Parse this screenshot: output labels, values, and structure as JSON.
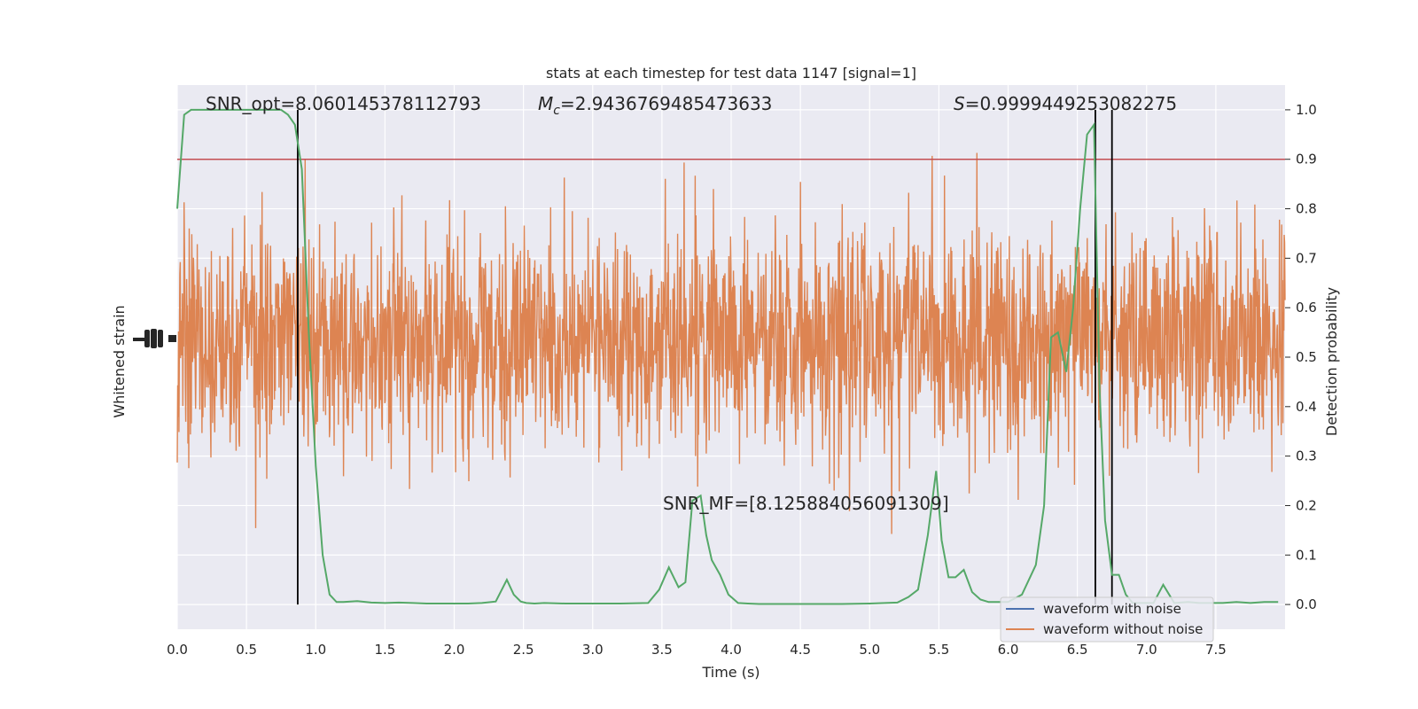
{
  "chart_data": {
    "type": "line",
    "title": "stats at each timestep for test data 1147 [signal=1]",
    "xlabel": "Time (s)",
    "ylabel_left": "Whitened strain",
    "ylabel_right": "Detection probability",
    "xlim": [
      0.0,
      8.0
    ],
    "ylim_right": [
      -0.05,
      1.05
    ],
    "x_ticks": [
      0.0,
      0.5,
      1.0,
      1.5,
      2.0,
      2.5,
      3.0,
      3.5,
      4.0,
      4.5,
      5.0,
      5.5,
      6.0,
      6.5,
      7.0,
      7.5
    ],
    "x_tick_labels": [
      "0.0",
      "0.5",
      "1.0",
      "1.5",
      "2.0",
      "2.5",
      "3.0",
      "3.5",
      "4.0",
      "4.5",
      "5.0",
      "5.5",
      "6.0",
      "6.5",
      "7.0",
      "7.5"
    ],
    "y_right_ticks": [
      0.0,
      0.1,
      0.2,
      0.3,
      0.4,
      0.5,
      0.6,
      0.7,
      0.8,
      0.9,
      1.0
    ],
    "y_right_tick_labels": [
      "0.0",
      "0.1",
      "0.2",
      "0.3",
      "0.4",
      "0.5",
      "0.6",
      "0.7",
      "0.8",
      "0.9",
      "1.0"
    ],
    "threshold": 0.9,
    "vertical_lines_x": [
      0.87,
      6.63,
      6.75
    ],
    "annotations": {
      "snr_opt": "SNR_opt=8.060145378112793",
      "mc_symbol": "M",
      "mc_subscript": "c",
      "mc_value": "=2.9436769485473633",
      "s_symbol": "S",
      "s_value": "=0.9999449253082275",
      "snr_mf": "SNR_MF=[8.125884056091309]"
    },
    "grid": true,
    "legend_placement": "lower-right",
    "series": [
      {
        "name": "waveform with noise",
        "color": "#4c72b0",
        "kind": "strain",
        "note": "hidden beneath the noiseless waveform trace"
      },
      {
        "name": "waveform without noise",
        "color": "#dd8452",
        "kind": "strain"
      },
      {
        "color": "#55a868",
        "kind": "probability",
        "x": [
          0.0,
          0.05,
          0.1,
          0.15,
          0.2,
          0.3,
          0.4,
          0.5,
          0.6,
          0.7,
          0.75,
          0.8,
          0.85,
          0.9,
          0.95,
          1.0,
          1.05,
          1.1,
          1.15,
          1.2,
          1.3,
          1.4,
          1.5,
          1.6,
          1.7,
          1.8,
          1.9,
          2.0,
          2.1,
          2.2,
          2.3,
          2.38,
          2.43,
          2.48,
          2.52,
          2.58,
          2.65,
          2.8,
          3.0,
          3.2,
          3.4,
          3.48,
          3.55,
          3.62,
          3.67,
          3.72,
          3.78,
          3.82,
          3.86,
          3.92,
          3.98,
          4.05,
          4.12,
          4.2,
          4.4,
          4.6,
          4.8,
          5.0,
          5.2,
          5.28,
          5.35,
          5.42,
          5.48,
          5.52,
          5.57,
          5.62,
          5.68,
          5.74,
          5.8,
          5.86,
          5.92,
          6.0,
          6.1,
          6.2,
          6.26,
          6.31,
          6.36,
          6.42,
          6.47,
          6.52,
          6.57,
          6.62,
          6.66,
          6.7,
          6.75,
          6.8,
          6.85,
          6.9,
          6.95,
          7.0,
          7.05,
          7.12,
          7.2,
          7.3,
          7.38,
          7.45,
          7.55,
          7.65,
          7.75,
          7.85,
          7.95
        ],
        "y": [
          0.8,
          0.99,
          1.0,
          1.0,
          1.0,
          1.0,
          1.0,
          1.0,
          1.0,
          1.0,
          1.0,
          0.99,
          0.97,
          0.88,
          0.55,
          0.28,
          0.1,
          0.02,
          0.005,
          0.005,
          0.007,
          0.004,
          0.003,
          0.004,
          0.003,
          0.002,
          0.002,
          0.002,
          0.002,
          0.003,
          0.006,
          0.05,
          0.02,
          0.006,
          0.003,
          0.002,
          0.003,
          0.002,
          0.002,
          0.002,
          0.003,
          0.03,
          0.075,
          0.035,
          0.045,
          0.21,
          0.22,
          0.14,
          0.09,
          0.06,
          0.02,
          0.003,
          0.002,
          0.001,
          0.001,
          0.001,
          0.001,
          0.002,
          0.004,
          0.015,
          0.03,
          0.14,
          0.27,
          0.13,
          0.055,
          0.055,
          0.07,
          0.025,
          0.01,
          0.005,
          0.005,
          0.005,
          0.02,
          0.08,
          0.2,
          0.54,
          0.55,
          0.47,
          0.6,
          0.8,
          0.95,
          0.97,
          0.44,
          0.17,
          0.06,
          0.06,
          0.02,
          0.003,
          0.003,
          0.003,
          0.003,
          0.04,
          0.003,
          0.005,
          0.003,
          0.003,
          0.003,
          0.005,
          0.003,
          0.005,
          0.005
        ]
      },
      {
        "color": "#c44e52",
        "kind": "threshold"
      }
    ]
  },
  "legend": {
    "entries": [
      "waveform with noise",
      "waveform without noise"
    ]
  }
}
